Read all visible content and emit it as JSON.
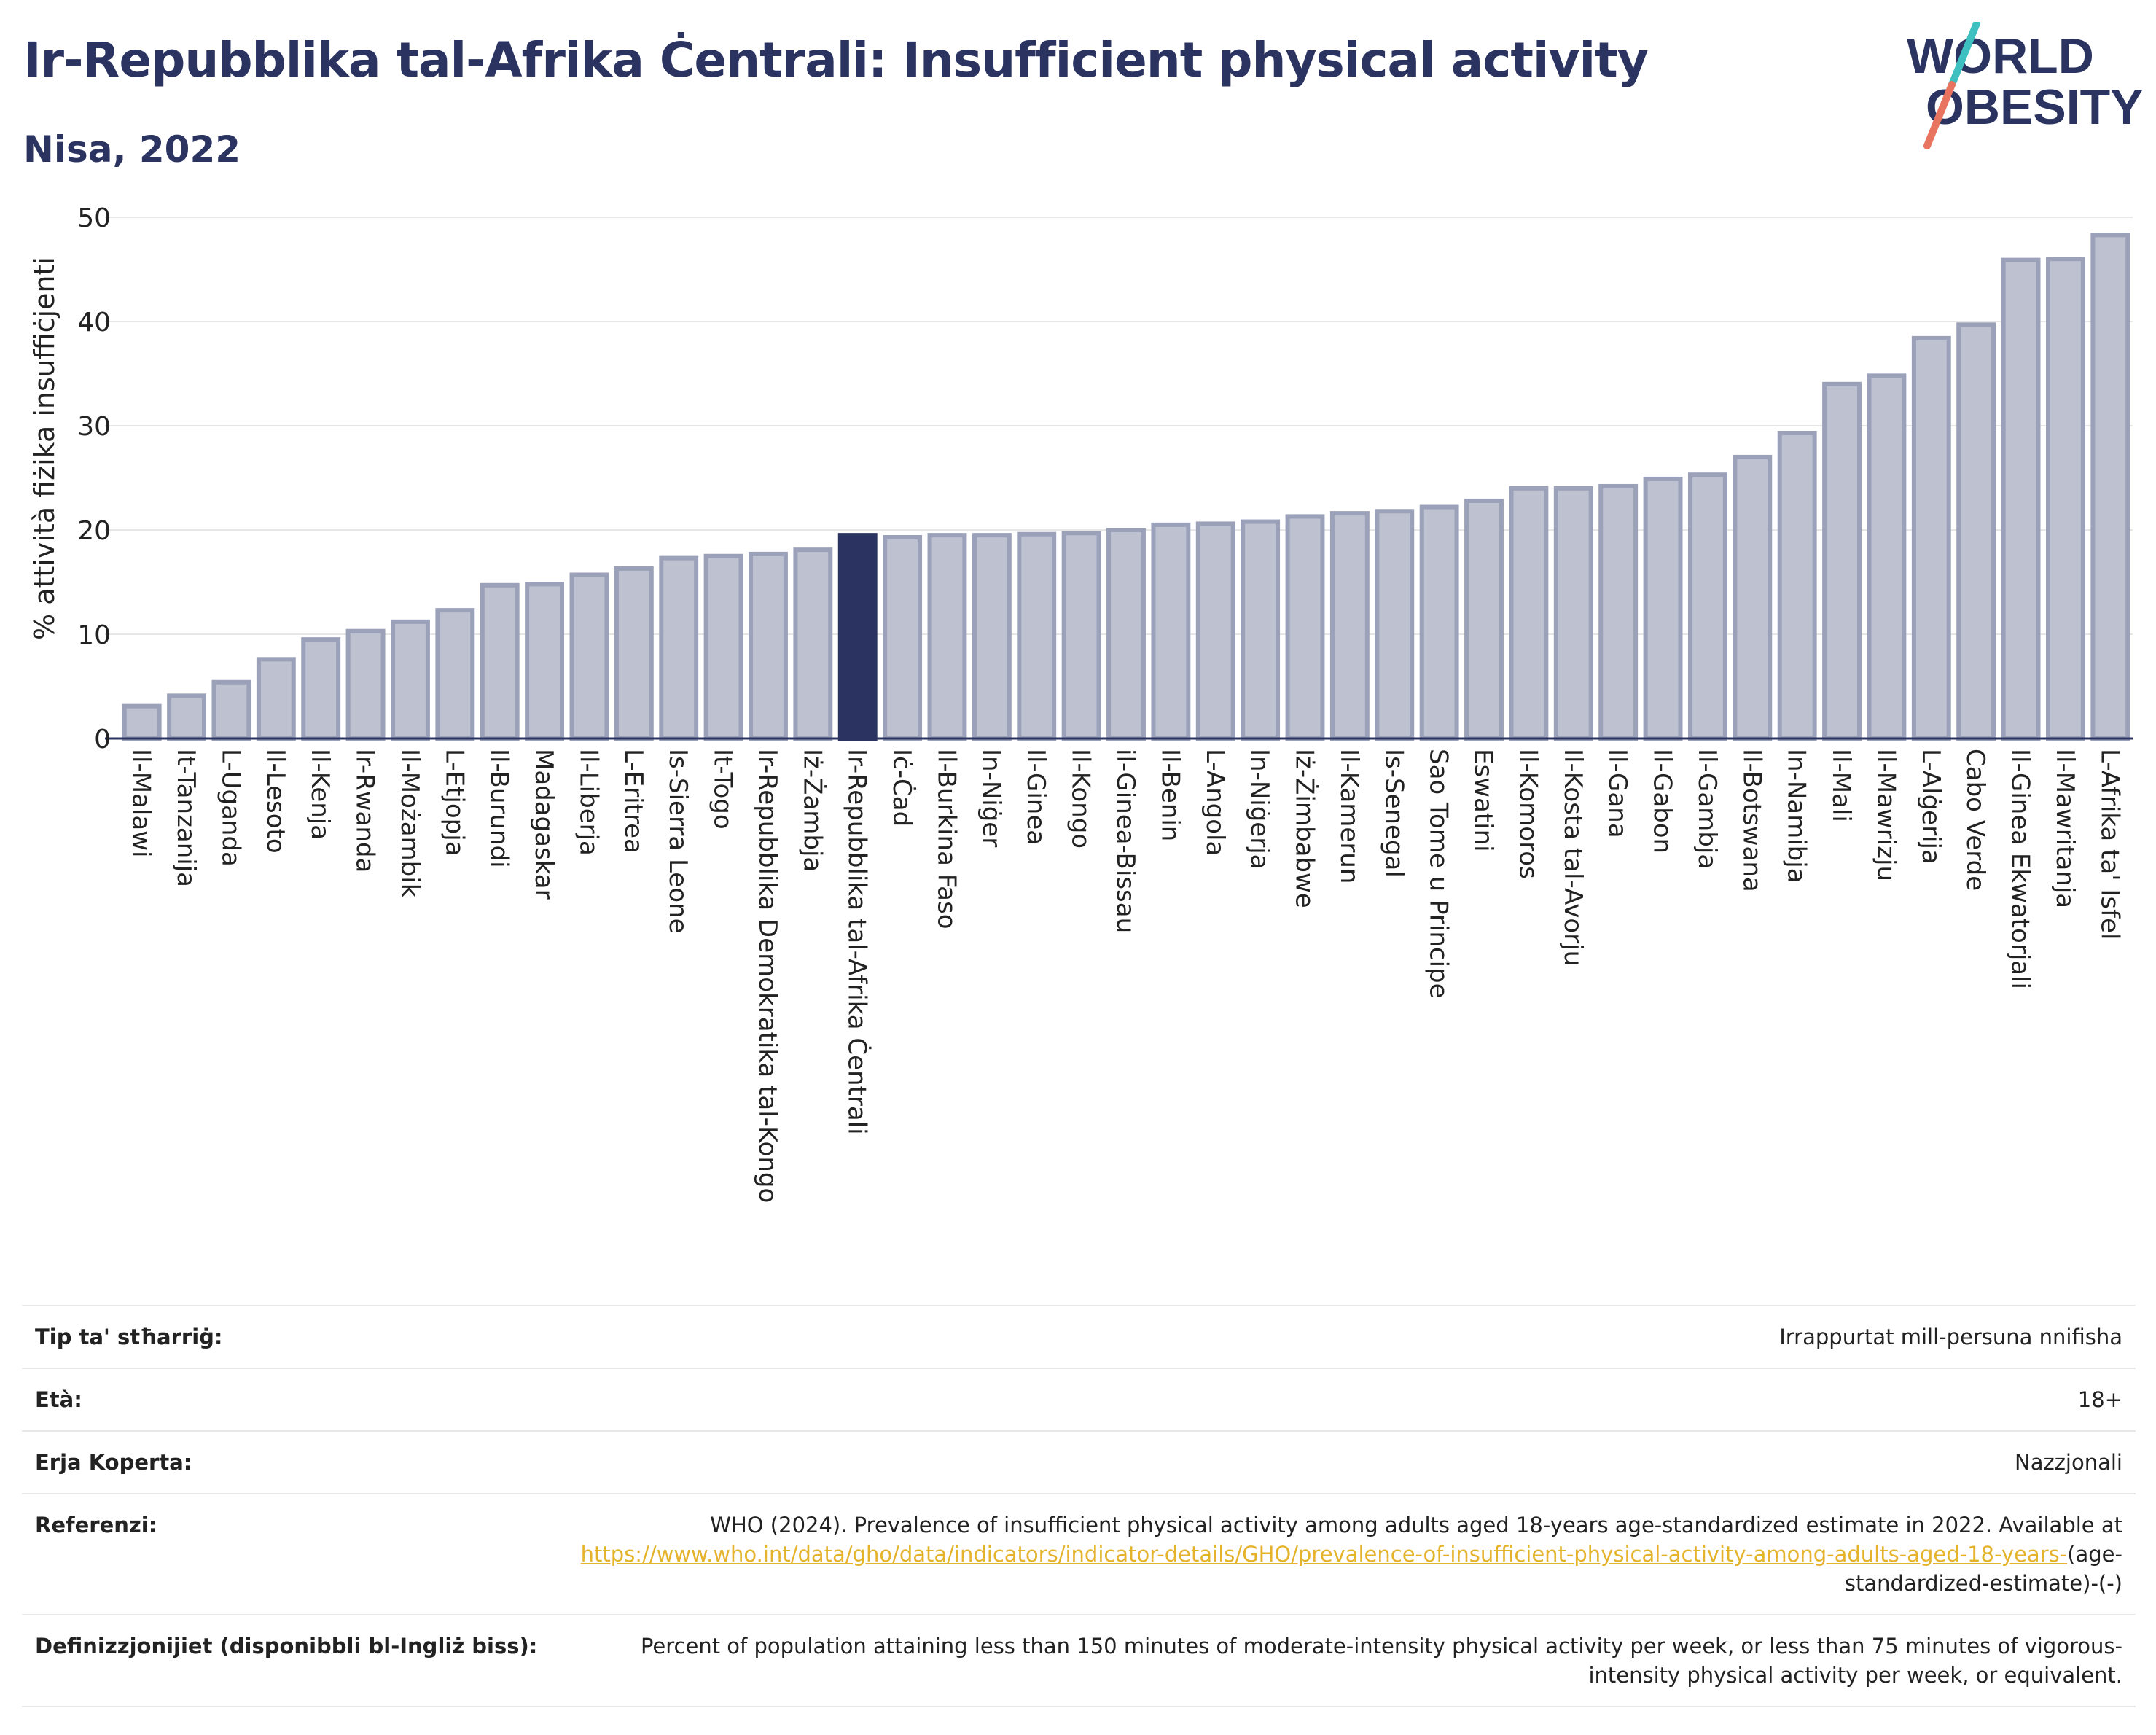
{
  "header": {
    "title": "Ir-Repubblika tal-Afrika Ċentrali: Insufficient physical activity",
    "subtitle": "Nisa, 2022"
  },
  "logo": {
    "line1": "WORLD",
    "line2": "OBESITY",
    "colors": {
      "text": "#2b3461",
      "slash_top": "#3fc0c0",
      "slash_bottom": "#e8735e"
    }
  },
  "chart_data": {
    "type": "bar",
    "title": "",
    "xlabel": "",
    "ylabel": "% attività fiżika insuffiċjenti",
    "ylim": [
      0,
      50
    ],
    "yticks": [
      0,
      10,
      20,
      30,
      40,
      50
    ],
    "grid": true,
    "highlight": "Ir-Repubblika tal-Afrika Ċentrali",
    "colors": {
      "bar": "#bdc1d0",
      "bar_edge": "#9aa1b8",
      "highlight": "#2b3461",
      "axis": "#2b3461",
      "grid": "#e6e6e6"
    },
    "categories": [
      "Il-Malawi",
      "It-Tanzanija",
      "L-Uganda",
      "Il-Lesoto",
      "Il-Kenja",
      "Ir-Rwanda",
      "Il-Możambik",
      "L-Etjopja",
      "Il-Burundi",
      "Madagaskar",
      "Il-Liberja",
      "L-Eritrea",
      "Is-Sierra Leone",
      "It-Togo",
      "Ir-Repubblika Demokratika tal-Kongo",
      "Iż-Żambja",
      "Ir-Repubblika tal-Afrika Ċentrali",
      "Iċ-Ċad",
      "Il-Burkina Faso",
      "In-Niġer",
      "Il-Ginea",
      "Il-Kongo",
      "il-Ginea-Bissau",
      "Il-Benin",
      "L-Angola",
      "In-Niġerja",
      "Iż-Żimbabwe",
      "Il-Kamerun",
      "Is-Senegal",
      "Sao Tome u Principe",
      "Eswatini",
      "Il-Komoros",
      "Il-Kosta tal-Avorju",
      "Il-Gana",
      "Il-Gabon",
      "Il-Gambja",
      "Il-Botswana",
      "In-Namibja",
      "Il-Mali",
      "Il-Mawrizju",
      "L-Alġerija",
      "Cabo Verde",
      "Il-Ginea Ekwatorjali",
      "Il-Mawritanja",
      "L-Afrika ta' Isfel"
    ],
    "values": [
      3.1,
      4.1,
      5.4,
      7.6,
      9.5,
      10.3,
      11.2,
      12.3,
      14.7,
      14.8,
      15.7,
      16.3,
      17.3,
      17.5,
      17.7,
      18.1,
      19.5,
      19.3,
      19.5,
      19.5,
      19.6,
      19.7,
      20.0,
      20.5,
      20.6,
      20.8,
      21.3,
      21.6,
      21.8,
      22.2,
      22.8,
      24.0,
      24.0,
      24.2,
      24.9,
      25.3,
      27.0,
      29.3,
      34.0,
      34.8,
      38.4,
      39.7,
      45.9,
      46.0,
      48.3
    ]
  },
  "info": {
    "rows": [
      {
        "label": "Tip ta' stħarriġ:",
        "value": "Irrappurtat mill-persuna nnifisha"
      },
      {
        "label": "Età:",
        "value": "18+"
      },
      {
        "label": "Erja Koperta:",
        "value": "Nazzjonali"
      }
    ],
    "references": {
      "label": "Referenzi:",
      "text": "WHO (2024). Prevalence of insufficient physical activity among adults aged 18-years age-standardized estimate in 2022. Available at",
      "link": "https://www.who.int/data/gho/data/indicators/indicator-details/GHO/prevalence-of-insufficient-physical-activity-among-adults-aged-18-years-",
      "suffix": "(age-standardized-estimate)-(-)"
    },
    "definitions": {
      "label": "Definizzjonijiet (disponibbli bl-Ingliż biss):",
      "value": "Percent of population attaining less than 150 minutes of moderate-intensity physical activity per week, or less than 75 minutes of vigorous-intensity physical activity per week, or equivalent."
    }
  }
}
